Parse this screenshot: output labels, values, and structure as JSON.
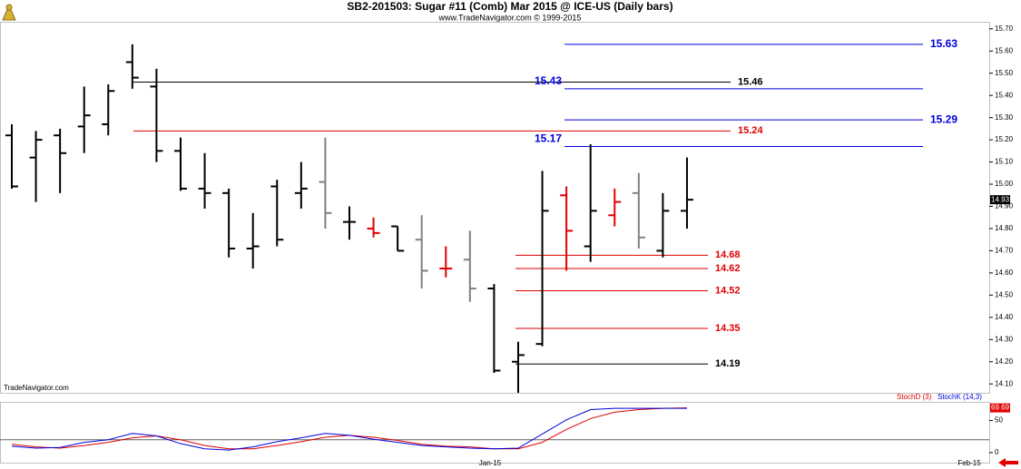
{
  "chart_data": {
    "type": "ohlc",
    "title": "SB2-201503:  Sugar #11 (Comb) Mar 2015 @ ICE-US  (Daily bars)",
    "subtitle": "www.TradeNavigator.com © 1999-2015",
    "watermark": "TradeNavigator.com",
    "open": [
      15.22,
      15.12,
      15.22,
      15.26,
      15.27,
      15.55,
      15.44,
      15.15,
      14.98,
      14.96,
      14.71,
      14.99,
      14.96,
      15.01,
      14.83,
      14.8,
      14.81,
      14.75,
      14.62,
      14.66,
      14.53,
      14.2,
      14.28,
      14.95,
      14.72,
      14.86,
      14.96,
      14.7,
      14.88
    ],
    "high": [
      15.27,
      15.24,
      15.25,
      15.44,
      15.45,
      15.63,
      15.52,
      15.21,
      15.14,
      14.98,
      14.87,
      15.02,
      15.1,
      15.21,
      14.9,
      14.85,
      14.81,
      14.86,
      14.72,
      14.79,
      14.55,
      14.29,
      15.06,
      14.99,
      15.18,
      14.98,
      15.05,
      14.96,
      15.12
    ],
    "low": [
      14.98,
      14.92,
      14.96,
      15.14,
      15.22,
      15.43,
      15.1,
      14.97,
      14.89,
      14.67,
      14.62,
      14.72,
      14.89,
      14.8,
      14.75,
      14.76,
      14.7,
      14.53,
      14.58,
      14.47,
      14.15,
      14.06,
      14.27,
      14.61,
      14.65,
      14.81,
      14.71,
      14.67,
      14.8
    ],
    "close": [
      14.99,
      15.2,
      15.14,
      15.31,
      15.42,
      15.48,
      15.15,
      14.98,
      14.96,
      14.71,
      14.72,
      14.75,
      14.98,
      14.87,
      14.83,
      14.78,
      14.7,
      14.61,
      14.62,
      14.53,
      14.16,
      14.23,
      14.88,
      14.79,
      14.88,
      14.92,
      14.76,
      14.88,
      14.93
    ],
    "bar_colors": [
      "#000",
      "#000",
      "#000",
      "#000",
      "#000",
      "#000",
      "#000",
      "#000",
      "#000",
      "#000",
      "#000",
      "#000",
      "#000",
      "#808080",
      "#000",
      "#e00000",
      "#000",
      "#808080",
      "#e00000",
      "#808080",
      "#000",
      "#000",
      "#000",
      "#e00000",
      "#000",
      "#e00000",
      "#808080",
      "#000",
      "#000"
    ],
    "ylim": [
      14.06,
      15.74
    ],
    "yticks": [
      {
        "value": 14.1,
        "label": "14.10"
      },
      {
        "value": 14.2,
        "label": "14.20"
      },
      {
        "value": 14.3,
        "label": "14.30"
      },
      {
        "value": 14.4,
        "label": "14.40"
      },
      {
        "value": 14.5,
        "label": "14.50"
      },
      {
        "value": 14.6,
        "label": "14.60"
      },
      {
        "value": 14.7,
        "label": "14.70"
      },
      {
        "value": 14.8,
        "label": "14.80"
      },
      {
        "value": 14.9,
        "label": "14.90"
      },
      {
        "value": 15.0,
        "label": "15.00"
      },
      {
        "value": 15.1,
        "label": "15.10"
      },
      {
        "value": 15.2,
        "label": "15.20"
      },
      {
        "value": 15.3,
        "label": "15.30"
      },
      {
        "value": 15.4,
        "label": "15.40"
      },
      {
        "value": 15.5,
        "label": "15.50"
      },
      {
        "value": 15.6,
        "label": "15.60"
      },
      {
        "value": 15.7,
        "label": "15.70"
      }
    ],
    "last_price": {
      "value": 14.93,
      "label": "14.93"
    },
    "levels": [
      {
        "value": 15.63,
        "color": "#0000e0"
      },
      {
        "value": 15.46,
        "color": "#000000"
      },
      {
        "value": 15.43,
        "color": "#0000e0"
      },
      {
        "value": 15.29,
        "color": "#0000e0"
      },
      {
        "value": 15.24,
        "color": "#e00000"
      },
      {
        "value": 15.17,
        "color": "#0000e0"
      },
      {
        "value": 14.68,
        "color": "#e00000"
      },
      {
        "value": 14.62,
        "color": "#e00000"
      },
      {
        "value": 14.52,
        "color": "#e00000"
      },
      {
        "value": 14.35,
        "color": "#e00000"
      },
      {
        "value": 14.19,
        "color": "#000000"
      }
    ],
    "x_labels": [
      "Jan-15",
      "Feb-15"
    ],
    "stoch": {
      "ylim": [
        -17,
        79
      ],
      "yticks": [
        0,
        50
      ],
      "reference_levels": [
        20
      ],
      "series": [
        {
          "name": "StochD (3)",
          "color": "#e00000",
          "values": [
            13,
            9,
            7,
            11,
            16,
            23,
            26,
            20,
            11,
            6,
            6,
            11,
            17,
            24,
            27,
            24,
            19,
            13,
            10,
            9,
            6,
            6,
            16,
            36,
            53,
            63,
            67,
            69,
            69.69
          ]
        },
        {
          "name": "StochK (14,3)",
          "color": "#0000e0",
          "values": [
            10,
            7,
            8,
            16,
            20,
            30,
            26,
            14,
            6,
            4,
            9,
            17,
            23,
            30,
            27,
            21,
            16,
            11,
            9,
            7,
            6,
            7,
            29,
            51,
            67,
            69,
            69,
            69,
            69
          ]
        }
      ],
      "last_value": {
        "value": 69.69,
        "label": "69.69"
      }
    }
  }
}
